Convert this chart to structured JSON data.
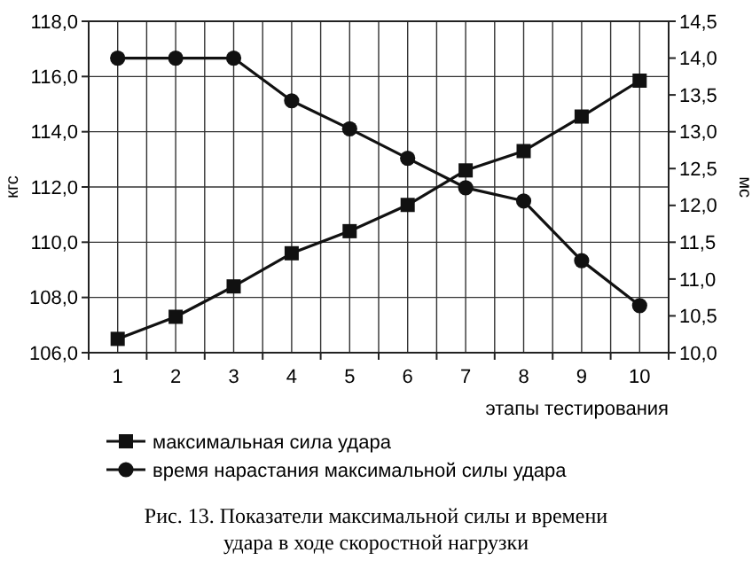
{
  "chart_data": {
    "type": "line",
    "title": "Рис. 13. Показатели максимальной силы и времени удара в ходе скоростной нагрузки",
    "xlabel": "этапы тестирования",
    "ylabel": "кгс",
    "y2label": "мс",
    "categories": [
      "1",
      "2",
      "3",
      "4",
      "5",
      "6",
      "7",
      "8",
      "9",
      "10"
    ],
    "series": [
      {
        "name": "максимальная сила удара",
        "color": "#111111",
        "marker": "square",
        "values": [
          106.5,
          107.3,
          108.4,
          109.6,
          110.4,
          111.35,
          112.6,
          113.3,
          114.55,
          115.85
        ]
      },
      {
        "name": "время нарастания максимальной силы удара",
        "color": "#111111",
        "marker": "circle",
        "axis": "y2",
        "values": [
          14.0,
          14.0,
          14.0,
          13.42,
          13.04,
          12.64,
          12.24,
          12.06,
          11.25,
          10.64
        ]
      }
    ],
    "ylim": [
      106,
      118
    ],
    "yticks": [
      {
        "value": 106,
        "label": "106,0"
      },
      {
        "value": 108,
        "label": "108,0"
      },
      {
        "value": 110,
        "label": "110,0"
      },
      {
        "value": 112,
        "label": "112,0"
      },
      {
        "value": 114,
        "label": "114,0"
      },
      {
        "value": 116,
        "label": "116,0"
      },
      {
        "value": 118,
        "label": "118,0"
      }
    ],
    "y2lim": [
      10,
      14.5
    ],
    "y2ticks": [
      {
        "value": 10,
        "label": "10,0"
      },
      {
        "value": 10.5,
        "label": "10,5"
      },
      {
        "value": 11,
        "label": "11,0"
      },
      {
        "value": 11.5,
        "label": "11,5"
      },
      {
        "value": 12,
        "label": "12,0"
      },
      {
        "value": 12.5,
        "label": "12,5"
      },
      {
        "value": 13,
        "label": "13,0"
      },
      {
        "value": 13.5,
        "label": "13,5"
      },
      {
        "value": 14,
        "label": "14,0"
      },
      {
        "value": 14.5,
        "label": "14,5"
      }
    ],
    "grid": true,
    "legend": "bottom",
    "line_style": "solid"
  }
}
